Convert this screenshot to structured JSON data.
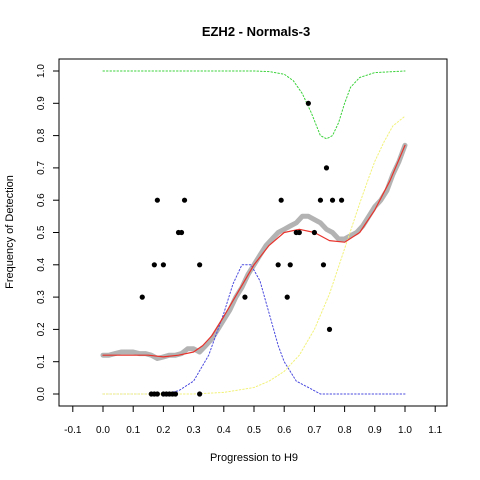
{
  "chart_data": {
    "type": "scatter",
    "title": "EZH2 - Normals-3",
    "xlabel": "Progression to H9",
    "ylabel": "Frequency of Detection",
    "xlim": [
      -0.1,
      1.1
    ],
    "ylim": [
      0.0,
      1.0
    ],
    "xticks": [
      "-0.1",
      "0.0",
      "0.1",
      "0.2",
      "0.3",
      "0.4",
      "0.5",
      "0.6",
      "0.7",
      "0.8",
      "0.9",
      "1.0",
      "1.1"
    ],
    "yticks": [
      "0.0",
      "0.1",
      "0.2",
      "0.3",
      "0.4",
      "0.5",
      "0.6",
      "0.7",
      "0.8",
      "0.9",
      "1.0"
    ],
    "grid": false,
    "colors": {
      "observed": "#000000",
      "smoothed": "#b3b3b3",
      "fit": "#e8322b",
      "blue": "#4a4adf",
      "green": "#3bd23b",
      "yellow": "#f2f27a"
    },
    "series": [
      {
        "type": "scatter",
        "color": "#000000",
        "points": [
          [
            0.13,
            0.3
          ],
          [
            0.16,
            0.0
          ],
          [
            0.17,
            0.0
          ],
          [
            0.17,
            0.4
          ],
          [
            0.18,
            0.0
          ],
          [
            0.18,
            0.6
          ],
          [
            0.2,
            0.4
          ],
          [
            0.2,
            0.0
          ],
          [
            0.21,
            0.0
          ],
          [
            0.22,
            0.0
          ],
          [
            0.23,
            0.0
          ],
          [
            0.24,
            0.0
          ],
          [
            0.25,
            0.5
          ],
          [
            0.26,
            0.5
          ],
          [
            0.27,
            0.6
          ],
          [
            0.32,
            0.4
          ],
          [
            0.32,
            0.0
          ],
          [
            0.47,
            0.3
          ],
          [
            0.58,
            0.4
          ],
          [
            0.59,
            0.6
          ],
          [
            0.61,
            0.3
          ],
          [
            0.62,
            0.4
          ],
          [
            0.64,
            0.5
          ],
          [
            0.65,
            0.5
          ],
          [
            0.68,
            0.9
          ],
          [
            0.7,
            0.5
          ],
          [
            0.72,
            0.6
          ],
          [
            0.73,
            0.4
          ],
          [
            0.74,
            0.7
          ],
          [
            0.75,
            0.2
          ],
          [
            0.76,
            0.6
          ],
          [
            0.79,
            0.6
          ]
        ]
      },
      {
        "type": "line",
        "style": "thick",
        "color": "#b3b3b3",
        "x": [
          0.0,
          0.02,
          0.04,
          0.06,
          0.08,
          0.1,
          0.12,
          0.14,
          0.16,
          0.18,
          0.2,
          0.22,
          0.24,
          0.26,
          0.28,
          0.3,
          0.32,
          0.34,
          0.36,
          0.38,
          0.4,
          0.42,
          0.44,
          0.46,
          0.48,
          0.5,
          0.52,
          0.54,
          0.56,
          0.58,
          0.6,
          0.62,
          0.64,
          0.66,
          0.68,
          0.7,
          0.72,
          0.74,
          0.76,
          0.78,
          0.8,
          0.82,
          0.84,
          0.86,
          0.88,
          0.9,
          0.92,
          0.94,
          0.96,
          0.98,
          1.0
        ],
        "y": [
          0.12,
          0.12,
          0.125,
          0.13,
          0.13,
          0.13,
          0.125,
          0.125,
          0.12,
          0.11,
          0.115,
          0.12,
          0.12,
          0.125,
          0.14,
          0.14,
          0.13,
          0.15,
          0.17,
          0.2,
          0.23,
          0.26,
          0.3,
          0.33,
          0.37,
          0.4,
          0.43,
          0.46,
          0.48,
          0.5,
          0.51,
          0.52,
          0.53,
          0.55,
          0.55,
          0.54,
          0.53,
          0.51,
          0.5,
          0.48,
          0.48,
          0.49,
          0.5,
          0.52,
          0.55,
          0.58,
          0.6,
          0.63,
          0.68,
          0.72,
          0.77
        ]
      },
      {
        "type": "line",
        "style": "solid",
        "color": "#e8322b",
        "x": [
          0.0,
          0.05,
          0.1,
          0.15,
          0.2,
          0.25,
          0.3,
          0.33,
          0.36,
          0.4,
          0.45,
          0.5,
          0.55,
          0.6,
          0.65,
          0.7,
          0.75,
          0.8,
          0.85,
          0.9,
          0.95,
          1.0
        ],
        "y": [
          0.12,
          0.12,
          0.12,
          0.12,
          0.115,
          0.12,
          0.13,
          0.15,
          0.18,
          0.24,
          0.32,
          0.4,
          0.46,
          0.5,
          0.51,
          0.5,
          0.475,
          0.47,
          0.5,
          0.57,
          0.66,
          0.77
        ]
      },
      {
        "type": "line",
        "style": "dotted",
        "color": "#4a4adf",
        "x": [
          0.0,
          0.1,
          0.2,
          0.25,
          0.3,
          0.35,
          0.4,
          0.43,
          0.46,
          0.49,
          0.52,
          0.55,
          0.58,
          0.6,
          0.64,
          0.68,
          0.72,
          0.8,
          0.9,
          1.0
        ],
        "y": [
          0.0,
          0.0,
          0.0,
          0.01,
          0.04,
          0.12,
          0.25,
          0.34,
          0.4,
          0.4,
          0.35,
          0.25,
          0.15,
          0.1,
          0.04,
          0.02,
          0.0,
          0.0,
          0.0,
          0.0
        ]
      },
      {
        "type": "line",
        "style": "dotted",
        "color": "#3bd23b",
        "x": [
          0.0,
          0.1,
          0.2,
          0.3,
          0.4,
          0.5,
          0.55,
          0.6,
          0.63,
          0.66,
          0.69,
          0.72,
          0.74,
          0.76,
          0.78,
          0.8,
          0.82,
          0.85,
          0.9,
          1.0
        ],
        "y": [
          1.0,
          1.0,
          1.0,
          1.0,
          1.0,
          1.0,
          0.998,
          0.99,
          0.97,
          0.93,
          0.87,
          0.8,
          0.79,
          0.8,
          0.84,
          0.9,
          0.95,
          0.98,
          0.995,
          1.0
        ]
      },
      {
        "type": "line",
        "style": "dotted",
        "color": "#f2f27a",
        "x": [
          0.0,
          0.2,
          0.3,
          0.4,
          0.5,
          0.55,
          0.6,
          0.65,
          0.7,
          0.75,
          0.8,
          0.85,
          0.88,
          0.9,
          0.93,
          0.96,
          1.0
        ],
        "y": [
          0.0,
          0.0,
          0.0,
          0.005,
          0.02,
          0.04,
          0.07,
          0.12,
          0.2,
          0.31,
          0.45,
          0.59,
          0.67,
          0.72,
          0.78,
          0.83,
          0.86
        ]
      }
    ]
  }
}
